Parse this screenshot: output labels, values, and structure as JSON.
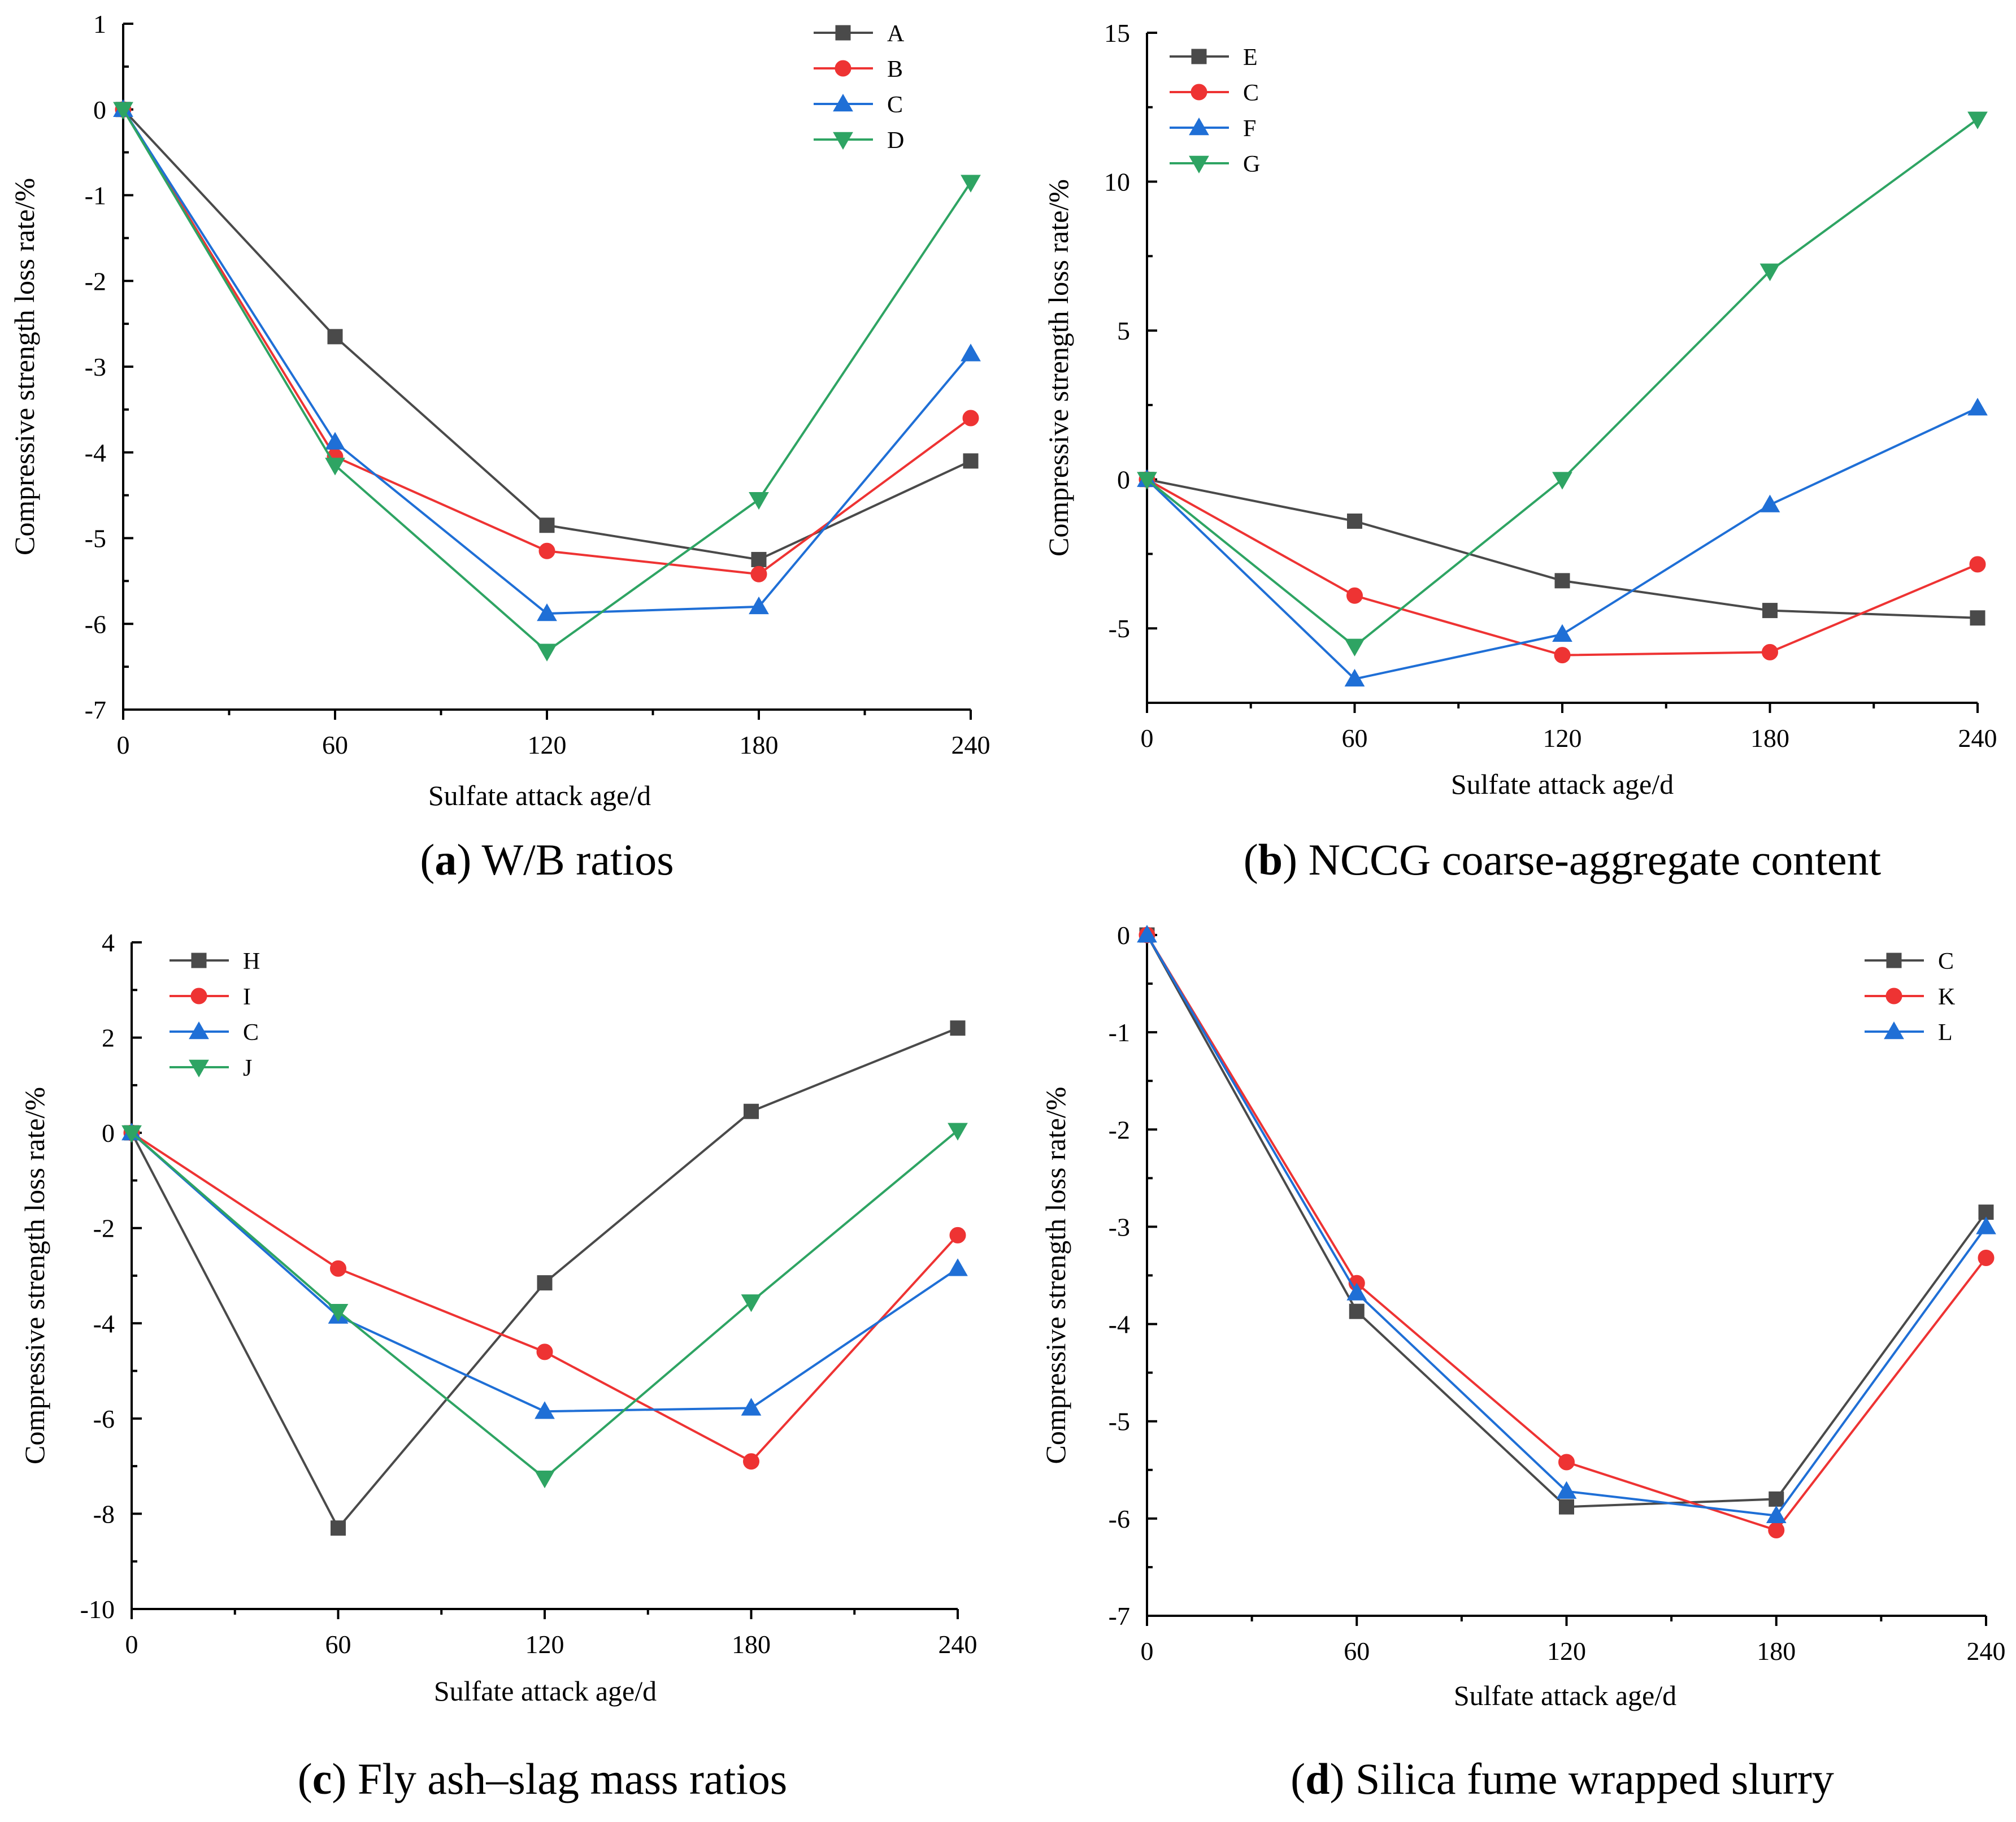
{
  "colors": {
    "dark": "#4a4a4a",
    "red": "#ee3333",
    "blue": "#1f6fd6",
    "green": "#2ea463"
  },
  "chart_data": [
    {
      "type": "line",
      "panel": "a",
      "caption": {
        "letter": "a",
        "text": "W/B ratios"
      },
      "xlabel": "Sulfate attack age/d",
      "ylabel": "Compressive strength loss rate/%",
      "x": [
        0,
        60,
        120,
        180,
        240
      ],
      "xticks": [
        "0",
        "60",
        "120",
        "180",
        "240"
      ],
      "xlim": [
        0,
        240
      ],
      "ylim": [
        -7,
        1
      ],
      "yticks": [
        1,
        0,
        -1,
        -2,
        -3,
        -4,
        -5,
        -6,
        -7
      ],
      "ytick_labels": [
        "1",
        "0",
        "-1",
        "-2",
        "-3",
        "-4",
        "-5",
        "-6",
        "-7"
      ],
      "legend_position": "top-right",
      "series": [
        {
          "name": "A",
          "color": "#4a4a4a",
          "marker": "square",
          "values": [
            0,
            -2.65,
            -4.85,
            -5.25,
            -4.1
          ]
        },
        {
          "name": "B",
          "color": "#ee3333",
          "marker": "circle",
          "values": [
            0,
            -4.05,
            -5.15,
            -5.42,
            -3.6
          ]
        },
        {
          "name": "C",
          "color": "#1f6fd6",
          "marker": "triangle-up",
          "values": [
            0,
            -3.88,
            -5.88,
            -5.8,
            -2.85
          ]
        },
        {
          "name": "D",
          "color": "#2ea463",
          "marker": "triangle-down",
          "values": [
            0,
            -4.15,
            -6.32,
            -4.55,
            -0.85
          ]
        }
      ]
    },
    {
      "type": "line",
      "panel": "b",
      "caption": {
        "letter": "b",
        "text": "NCCG coarse-aggregate content"
      },
      "xlabel": "Sulfate attack age/d",
      "ylabel": "Compressive strength loss rate/%",
      "x": [
        0,
        60,
        120,
        180,
        240
      ],
      "xticks": [
        "0",
        "60",
        "120",
        "180",
        "240"
      ],
      "xlim": [
        0,
        240
      ],
      "ylim": [
        -7.5,
        15
      ],
      "yticks": [
        15,
        10,
        5,
        0,
        -5
      ],
      "ytick_labels": [
        "15",
        "10",
        "5",
        "0",
        "-5"
      ],
      "legend_position": "top-left",
      "series": [
        {
          "name": "E",
          "color": "#4a4a4a",
          "marker": "square",
          "values": [
            0,
            -1.4,
            -3.4,
            -4.4,
            -4.65
          ]
        },
        {
          "name": "C",
          "color": "#ee3333",
          "marker": "circle",
          "values": [
            0,
            -3.9,
            -5.9,
            -5.8,
            -2.85
          ]
        },
        {
          "name": "F",
          "color": "#1f6fd6",
          "marker": "triangle-up",
          "values": [
            0,
            -6.7,
            -5.2,
            -0.85,
            2.4
          ]
        },
        {
          "name": "G",
          "color": "#2ea463",
          "marker": "triangle-down",
          "values": [
            0,
            -5.6,
            0,
            7,
            12.1
          ]
        }
      ]
    },
    {
      "type": "line",
      "panel": "c",
      "caption": {
        "letter": "c",
        "text": "Fly ash–slag mass ratios"
      },
      "xlabel": "Sulfate attack age/d",
      "ylabel": "Compressive strength loss rate/%",
      "x": [
        0,
        60,
        120,
        180,
        240
      ],
      "xticks": [
        "0",
        "60",
        "120",
        "180",
        "240"
      ],
      "xlim": [
        0,
        240
      ],
      "ylim": [
        -10,
        4
      ],
      "yticks": [
        4,
        2,
        0,
        -2,
        -4,
        -6,
        -8,
        -10
      ],
      "ytick_labels": [
        "4",
        "2",
        "0",
        "-2",
        "-4",
        "-6",
        "-8",
        "-10"
      ],
      "legend_position": "top-left",
      "series": [
        {
          "name": "H",
          "color": "#4a4a4a",
          "marker": "square",
          "values": [
            0,
            -8.3,
            -3.15,
            0.45,
            2.2
          ]
        },
        {
          "name": "I",
          "color": "#ee3333",
          "marker": "circle",
          "values": [
            0,
            -2.85,
            -4.6,
            -6.9,
            -2.15
          ]
        },
        {
          "name": "C",
          "color": "#1f6fd6",
          "marker": "triangle-up",
          "values": [
            0,
            -3.85,
            -5.85,
            -5.78,
            -2.85
          ]
        },
        {
          "name": "J",
          "color": "#2ea463",
          "marker": "triangle-down",
          "values": [
            0,
            -3.75,
            -7.25,
            -3.55,
            0.05
          ]
        }
      ]
    },
    {
      "type": "line",
      "panel": "d",
      "caption": {
        "letter": "d",
        "text": "Silica fume wrapped slurry"
      },
      "xlabel": "Sulfate attack age/d",
      "ylabel": "Compressive strength loss rate/%",
      "x": [
        0,
        60,
        120,
        180,
        240
      ],
      "xticks": [
        "0",
        "60",
        "120",
        "180",
        "240"
      ],
      "xlim": [
        0,
        240
      ],
      "ylim": [
        -7,
        0
      ],
      "yticks": [
        0,
        -1,
        -2,
        -3,
        -4,
        -5,
        -6,
        -7
      ],
      "ytick_labels": [
        "0",
        "-1",
        "-2",
        "-3",
        "-4",
        "-5",
        "-6",
        "-7"
      ],
      "legend_position": "top-right",
      "series": [
        {
          "name": "C",
          "color": "#4a4a4a",
          "marker": "square",
          "values": [
            0,
            -3.87,
            -5.88,
            -5.8,
            -2.85
          ]
        },
        {
          "name": "K",
          "color": "#ee3333",
          "marker": "circle",
          "values": [
            0,
            -3.58,
            -5.42,
            -6.12,
            -3.32
          ]
        },
        {
          "name": "L",
          "color": "#1f6fd6",
          "marker": "triangle-up",
          "values": [
            0,
            -3.68,
            -5.72,
            -5.97,
            -3.0
          ]
        }
      ]
    }
  ]
}
